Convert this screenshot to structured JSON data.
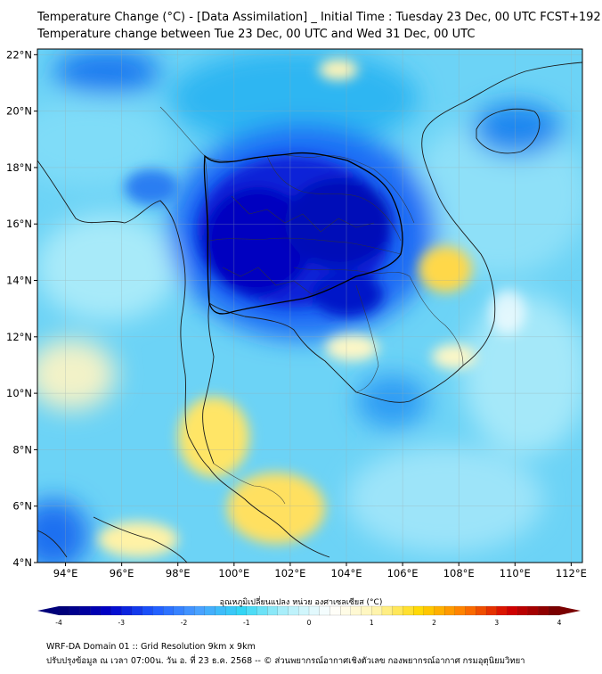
{
  "header": {
    "title_line1": "Temperature Change (°C) - [Data Assimilation] _ Initial Time : Tuesday 23 Dec, 00 UTC FCST+192",
    "title_line2": "Temperature change between Tue 23 Dec, 00 UTC and Wed 31 Dec, 00 UTC"
  },
  "axes": {
    "lat_ticks": [
      "22°N",
      "20°N",
      "18°N",
      "16°N",
      "14°N",
      "12°N",
      "10°N",
      "8°N",
      "6°N",
      "4°N"
    ],
    "lon_ticks": [
      "94°E",
      "96°E",
      "98°E",
      "100°E",
      "102°E",
      "104°E",
      "106°E",
      "108°E",
      "110°E",
      "112°E"
    ]
  },
  "colorbar": {
    "label": "อุณหภูมิเปลี่ยนแปลง หน่วย องศาเซลเซียส (°C)",
    "ticks": [
      "-4",
      "-3",
      "-2",
      "-1",
      "0",
      "1",
      "2",
      "3",
      "4"
    ],
    "colors": [
      "#00007a",
      "#0000c8",
      "#1e5aff",
      "#4aa0ff",
      "#33d6f5",
      "#b3f0fa",
      "#ffffff",
      "#fff5b0",
      "#ffd800",
      "#ff7a00",
      "#d40000",
      "#7a0000"
    ]
  },
  "footer": {
    "line1": "WRF-DA Domain 01 :: Grid Resolution 9km x 9km",
    "line2": "ปรับปรุงข้อมูล ณ เวลา 07:00น. วัน อ. ที่ 23 ธ.ค. 2568 -- © ส่วนพยากรณ์อากาศเชิงตัวเลข กองพยากรณ์อากาศ กรมอุตุนิยมวิทยา"
  }
}
